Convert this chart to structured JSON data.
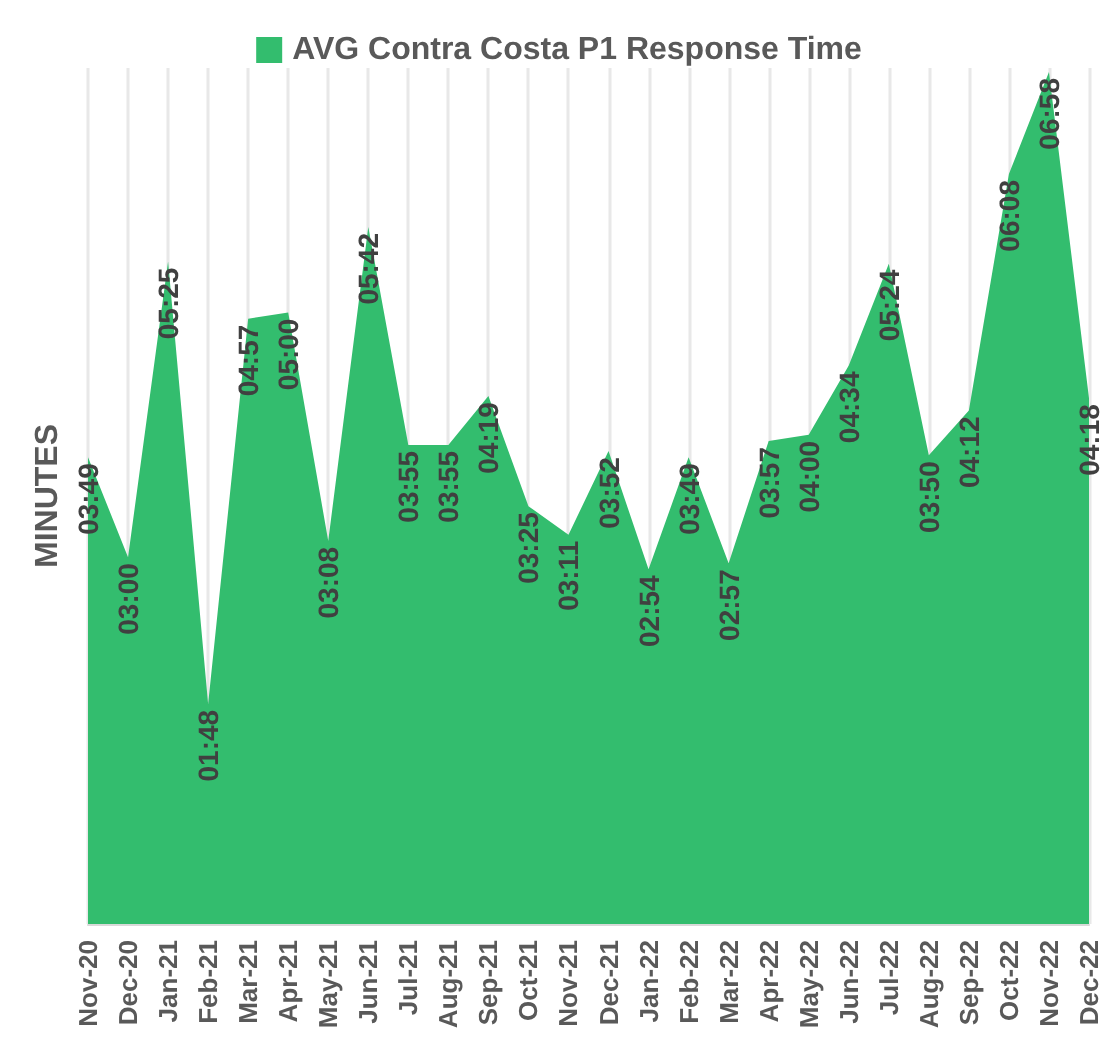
{
  "chart_data": {
    "type": "area",
    "ylabel": "MINUTES",
    "legend": "top",
    "grid": true,
    "tick_labels": "x",
    "categories": [
      "Nov-20",
      "Dec-20",
      "Jan-21",
      "Feb-21",
      "Mar-21",
      "Apr-21",
      "May-21",
      "Jun-21",
      "Jul-21",
      "Aug-21",
      "Sep-21",
      "Oct-21",
      "Nov-21",
      "Dec-21",
      "Jan-22",
      "Feb-22",
      "Mar-22",
      "Apr-22",
      "May-22",
      "Jun-22",
      "Jul-22",
      "Aug-22",
      "Sep-22",
      "Oct-22",
      "Nov-22",
      "Dec-22"
    ],
    "series": [
      {
        "name": "AVG Contra Costa P1 Response Time",
        "color": "#33bd6e",
        "values": [
          3.817,
          3.0,
          5.417,
          1.8,
          4.95,
          5.0,
          3.133,
          5.7,
          3.917,
          3.917,
          4.317,
          3.417,
          3.183,
          3.867,
          2.9,
          3.817,
          2.95,
          3.95,
          4.0,
          4.567,
          5.4,
          3.833,
          4.2,
          6.133,
          6.967,
          4.3
        ],
        "value_labels": [
          "03:49",
          "03:00",
          "05:25",
          "01:48",
          "04:57",
          "05:00",
          "03:08",
          "05:42",
          "03:55",
          "03:55",
          "04:19",
          "03:25",
          "03:11",
          "03:52",
          "02:54",
          "03:49",
          "02:57",
          "03:57",
          "04:00",
          "04:34",
          "05:24",
          "03:50",
          "04:12",
          "06:08",
          "06:58",
          "04:18"
        ]
      }
    ]
  }
}
